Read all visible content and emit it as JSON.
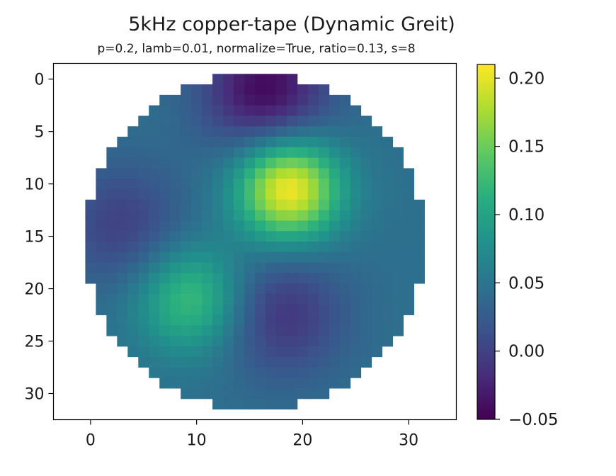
{
  "chart_data": {
    "type": "heatmap",
    "title": "5kHz copper-tape (Dynamic Greit)",
    "subtitle": "p=0.2, lamb=0.01, normalize=True, ratio=0.13, s=8",
    "xlabel": "",
    "ylabel": "",
    "grid_size": 32,
    "xlim": [
      -3.5,
      34.5
    ],
    "ylim": [
      32.5,
      -1.5
    ],
    "x_ticks": [
      0,
      10,
      20,
      30
    ],
    "y_ticks": [
      0,
      5,
      10,
      15,
      20,
      25,
      30
    ],
    "x_tick_labels": [
      "0",
      "10",
      "20",
      "30"
    ],
    "y_tick_labels": [
      "0",
      "5",
      "10",
      "15",
      "20",
      "25",
      "30"
    ],
    "colormap": "viridis",
    "colorbar": {
      "vmin": -0.05,
      "vmax": 0.21,
      "ticks": [
        0.2,
        0.15,
        0.1,
        0.05,
        0.0,
        -0.05
      ],
      "tick_labels": [
        "0.20",
        "0.15",
        "0.10",
        "0.05",
        "0.00",
        "−0.05"
      ]
    },
    "domain": {
      "shape": "circle",
      "center": [
        15.5,
        15.5
      ],
      "radius": 16
    },
    "features": [
      {
        "label": "peak",
        "x": 18.7,
        "y": 10.5,
        "value": 0.21
      },
      {
        "label": "peak",
        "x": 9.5,
        "y": 21.0,
        "value": 0.13
      },
      {
        "label": "trough",
        "x": 16.5,
        "y": 1.0,
        "value": -0.045
      },
      {
        "label": "trough",
        "x": 18.0,
        "y": 22.5,
        "value": -0.01
      },
      {
        "label": "trough",
        "x": 3.0,
        "y": 14.0,
        "value": 0.0
      }
    ],
    "background_value": 0.045
  }
}
